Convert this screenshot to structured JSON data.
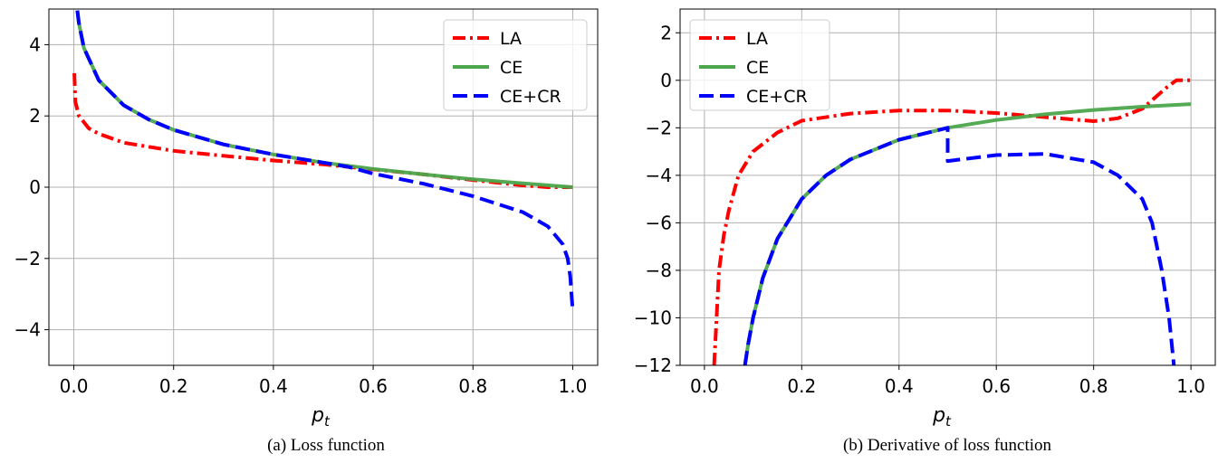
{
  "chart_data": [
    {
      "type": "line",
      "caption": "(a) Loss function",
      "xlabel": "p",
      "xlabel_subscript": "t",
      "ylabel": "",
      "xlim": [
        -0.05,
        1.05
      ],
      "ylim": [
        -5,
        5
      ],
      "xticks": [
        0.0,
        0.2,
        0.4,
        0.6,
        0.8,
        1.0
      ],
      "xtick_labels": [
        "0.0",
        "0.2",
        "0.4",
        "0.6",
        "0.8",
        "1.0"
      ],
      "yticks": [
        -4,
        -2,
        0,
        2,
        4
      ],
      "ytick_labels": [
        "−4",
        "−2",
        "0",
        "2",
        "4"
      ],
      "grid": true,
      "legend_placement": "top-right",
      "series": [
        {
          "name": "LA",
          "color": "#ff0000",
          "style": "dash-dot",
          "x": [
            0.001,
            0.003,
            0.01,
            0.03,
            0.05,
            0.1,
            0.2,
            0.3,
            0.4,
            0.5,
            0.6,
            0.7,
            0.8,
            0.9,
            0.95,
            1.0
          ],
          "y": [
            3.2,
            2.4,
            2.0,
            1.65,
            1.5,
            1.25,
            1.02,
            0.88,
            0.75,
            0.64,
            0.5,
            0.36,
            0.2,
            0.05,
            0.0,
            0.0
          ]
        },
        {
          "name": "CE",
          "color": "#4ca64c",
          "style": "solid",
          "x": [
            0.007,
            0.01,
            0.02,
            0.05,
            0.1,
            0.15,
            0.2,
            0.3,
            0.4,
            0.5,
            0.6,
            0.7,
            0.8,
            0.9,
            1.0
          ],
          "y": [
            4.96,
            4.61,
            3.91,
            3.0,
            2.3,
            1.9,
            1.61,
            1.2,
            0.92,
            0.69,
            0.51,
            0.36,
            0.22,
            0.11,
            0.0
          ]
        },
        {
          "name": "CE+CR",
          "color": "#0000ff",
          "style": "dashed",
          "x": [
            0.007,
            0.01,
            0.02,
            0.05,
            0.1,
            0.15,
            0.2,
            0.3,
            0.4,
            0.5,
            0.55,
            0.6,
            0.7,
            0.8,
            0.9,
            0.95,
            0.98,
            0.99,
            0.995,
            1.0
          ],
          "y": [
            4.96,
            4.61,
            3.91,
            3.0,
            2.3,
            1.9,
            1.61,
            1.2,
            0.92,
            0.69,
            0.57,
            0.38,
            0.1,
            -0.25,
            -0.7,
            -1.1,
            -1.6,
            -2.0,
            -2.5,
            -3.5
          ]
        }
      ]
    },
    {
      "type": "line",
      "caption": "(b) Derivative of loss function",
      "xlabel": "p",
      "xlabel_subscript": "t",
      "ylabel": "",
      "xlim": [
        -0.05,
        1.05
      ],
      "ylim": [
        -12,
        3
      ],
      "xticks": [
        0.0,
        0.2,
        0.4,
        0.6,
        0.8,
        1.0
      ],
      "xtick_labels": [
        "0.0",
        "0.2",
        "0.4",
        "0.6",
        "0.8",
        "1.0"
      ],
      "yticks": [
        -12,
        -10,
        -8,
        -6,
        -4,
        -2,
        0,
        2
      ],
      "ytick_labels": [
        "−12",
        "−10",
        "−8",
        "−6",
        "−4",
        "−2",
        "0",
        "2"
      ],
      "grid": true,
      "legend_placement": "top-left",
      "series": [
        {
          "name": "LA",
          "color": "#ff0000",
          "style": "dash-dot",
          "x": [
            0.02,
            0.03,
            0.04,
            0.05,
            0.07,
            0.1,
            0.15,
            0.2,
            0.3,
            0.4,
            0.5,
            0.6,
            0.7,
            0.8,
            0.85,
            0.9,
            0.95,
            0.97,
            1.0
          ],
          "y": [
            -12,
            -8,
            -6.5,
            -5.5,
            -4,
            -3,
            -2.2,
            -1.7,
            -1.4,
            -1.27,
            -1.27,
            -1.38,
            -1.55,
            -1.72,
            -1.6,
            -1.2,
            -0.3,
            0,
            0
          ]
        },
        {
          "name": "CE",
          "color": "#4ca64c",
          "style": "solid",
          "x": [
            0.0833,
            0.09,
            0.1,
            0.12,
            0.15,
            0.2,
            0.25,
            0.3,
            0.4,
            0.5,
            0.6,
            0.7,
            0.8,
            0.9,
            1.0
          ],
          "y": [
            -12,
            -11.1,
            -10,
            -8.33,
            -6.67,
            -5,
            -4,
            -3.33,
            -2.5,
            -2,
            -1.67,
            -1.43,
            -1.25,
            -1.11,
            -1.0
          ]
        },
        {
          "name": "CE+CR",
          "color": "#0000ff",
          "style": "dashed",
          "x": [
            0.0833,
            0.09,
            0.1,
            0.12,
            0.15,
            0.2,
            0.25,
            0.3,
            0.4,
            0.5,
            0.5,
            0.6,
            0.7,
            0.8,
            0.85,
            0.9,
            0.92,
            0.94,
            0.955,
            0.965
          ],
          "y": [
            -12,
            -11.1,
            -10,
            -8.33,
            -6.67,
            -5,
            -4,
            -3.33,
            -2.5,
            -2,
            -3.4,
            -3.15,
            -3.1,
            -3.45,
            -4.0,
            -5.0,
            -6.0,
            -8.0,
            -10.0,
            -12.0
          ]
        }
      ]
    }
  ]
}
